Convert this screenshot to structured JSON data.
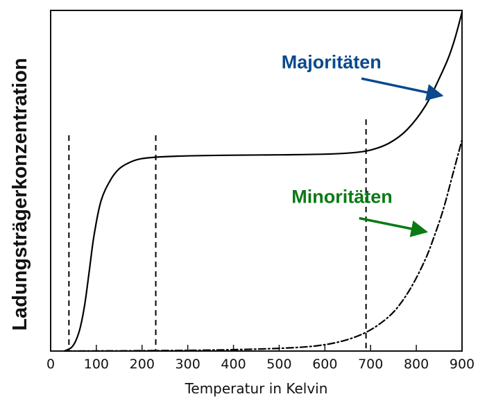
{
  "chart_data": {
    "type": "line",
    "title": "",
    "xlabel": "Temperatur in Kelvin",
    "ylabel": "Ladungsträgerkonzentration",
    "xlim": [
      0,
      900
    ],
    "ylim": [
      0,
      1
    ],
    "x_ticks": [
      0,
      100,
      200,
      300,
      400,
      500,
      600,
      700,
      800,
      900
    ],
    "y_ticks_visible": false,
    "grid": false,
    "colors": {
      "axis": "#111111",
      "curve": "#000000",
      "majority": "#0a4a8c",
      "minority": "#0a7a14"
    },
    "series": [
      {
        "style": "solid",
        "points": [
          [
            30,
            0.0
          ],
          [
            45,
            0.01
          ],
          [
            55,
            0.03
          ],
          [
            65,
            0.07
          ],
          [
            75,
            0.14
          ],
          [
            85,
            0.24
          ],
          [
            95,
            0.34
          ],
          [
            110,
            0.44
          ],
          [
            130,
            0.5
          ],
          [
            150,
            0.535
          ],
          [
            175,
            0.555
          ],
          [
            200,
            0.565
          ],
          [
            240,
            0.57
          ],
          [
            300,
            0.573
          ],
          [
            400,
            0.575
          ],
          [
            500,
            0.576
          ],
          [
            600,
            0.578
          ],
          [
            660,
            0.582
          ],
          [
            700,
            0.59
          ],
          [
            740,
            0.61
          ],
          [
            780,
            0.65
          ],
          [
            820,
            0.72
          ],
          [
            850,
            0.8
          ],
          [
            870,
            0.86
          ],
          [
            885,
            0.92
          ],
          [
            900,
            0.995
          ]
        ]
      },
      {
        "style": "dashdot",
        "points": [
          [
            30,
            0.0
          ],
          [
            200,
            0.001
          ],
          [
            300,
            0.002
          ],
          [
            400,
            0.004
          ],
          [
            500,
            0.008
          ],
          [
            580,
            0.015
          ],
          [
            640,
            0.03
          ],
          [
            690,
            0.055
          ],
          [
            730,
            0.09
          ],
          [
            760,
            0.13
          ],
          [
            790,
            0.19
          ],
          [
            820,
            0.27
          ],
          [
            840,
            0.34
          ],
          [
            860,
            0.42
          ],
          [
            880,
            0.52
          ],
          [
            900,
            0.62
          ]
        ]
      }
    ],
    "vertical_lines": [
      40,
      230,
      690
    ],
    "annotations": [
      {
        "text": "Majoritäten",
        "color_key": "majority",
        "text_pos": [
          505,
          0.83
        ],
        "arrow_from": [
          680,
          0.8
        ],
        "arrow_to": [
          856,
          0.75
        ]
      },
      {
        "text": "Minoritäten",
        "color_key": "minority",
        "text_pos": [
          527,
          0.435
        ],
        "arrow_from": [
          675,
          0.39
        ],
        "arrow_to": [
          822,
          0.35
        ]
      }
    ]
  }
}
